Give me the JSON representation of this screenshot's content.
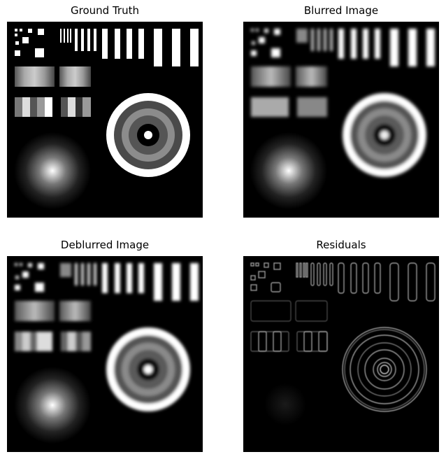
{
  "figure": {
    "panels": [
      {
        "title": "Ground Truth"
      },
      {
        "title": "Blurred Image"
      },
      {
        "title": "Deblurred Image"
      },
      {
        "title": "Residuals"
      }
    ]
  }
}
